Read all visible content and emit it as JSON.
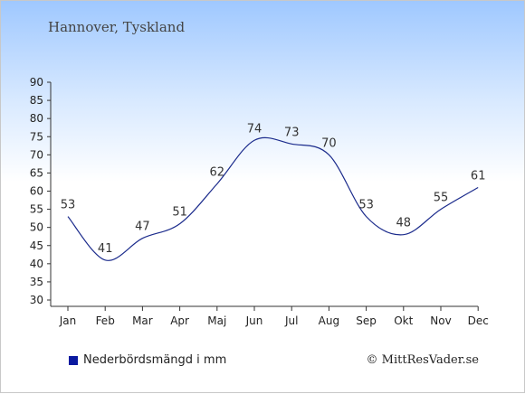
{
  "title": "Hannover, Tyskland",
  "credit": "© MittResVader.se",
  "colors": {
    "line": "#1b2b8c",
    "legend": "#0a1aa0"
  },
  "chart_data": {
    "type": "line",
    "categories": [
      "Jan",
      "Feb",
      "Mar",
      "Apr",
      "Maj",
      "Jun",
      "Jul",
      "Aug",
      "Sep",
      "Okt",
      "Nov",
      "Dec"
    ],
    "series": [
      {
        "name": "Nederbördsmängd i mm",
        "values": [
          53,
          41,
          47,
          51,
          62,
          74,
          73,
          70,
          53,
          48,
          55,
          61
        ]
      }
    ],
    "ylim": [
      30,
      90
    ],
    "yticks": [
      30,
      35,
      40,
      45,
      50,
      55,
      60,
      65,
      70,
      75,
      80,
      85,
      90
    ],
    "grid": false,
    "legend_position": "bottom-left"
  }
}
